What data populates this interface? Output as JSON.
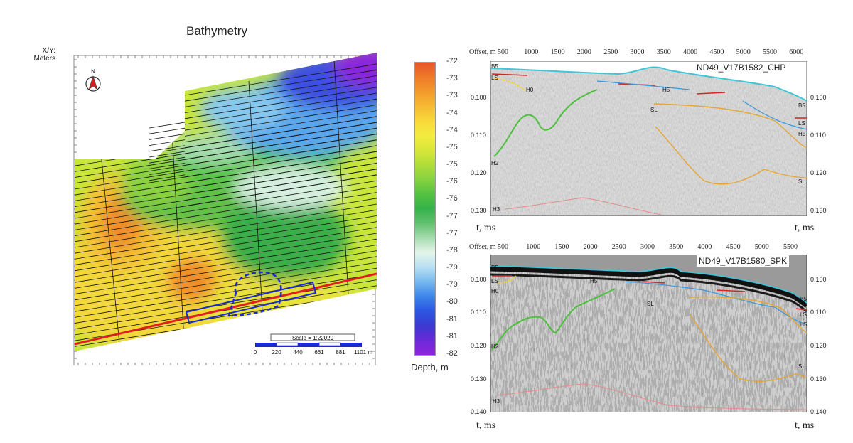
{
  "left_panel": {
    "title": "Bathymetry",
    "axis_label_line1": "X/Y:",
    "axis_label_line2": "Meters",
    "north_label": "N",
    "scale_title": "Scale = 1:22029",
    "scale_ticks": [
      "0",
      "220",
      "440",
      "661",
      "881",
      "1101 m"
    ]
  },
  "colorbar": {
    "labels": [
      "-72",
      "-73",
      "-73",
      "-74",
      "-74",
      "-75",
      "-75",
      "-76",
      "-76",
      "-77",
      "-77",
      "-78",
      "-79",
      "-79",
      "-80",
      "-81",
      "-81",
      "-82"
    ],
    "title": "Depth, m",
    "colors": [
      "#e8562a",
      "#ef7a28",
      "#f29a2c",
      "#f6bb33",
      "#f8d83a",
      "#f2ec3e",
      "#d8e63a",
      "#b0dd3a",
      "#86d240",
      "#54c242",
      "#36b24a",
      "#62c070",
      "#a6dcaf",
      "#e4f4ea",
      "#b8e0f2",
      "#76b8ee",
      "#3c86ea",
      "#2d56e2",
      "#3a3ad0",
      "#6a2ad8",
      "#8e24dc"
    ]
  },
  "seismic_top": {
    "title": "ND49_V17B1582_CHP",
    "offset_label": "Offset, m",
    "offset_ticks": [
      "500",
      "1000",
      "1500",
      "2000",
      "2500",
      "3000",
      "3500",
      "4000",
      "4500",
      "5000",
      "5500",
      "6000"
    ],
    "time_ticks": [
      "0.100",
      "0.110",
      "0.120",
      "0.130"
    ],
    "left_horizons": [
      "B5",
      "LS",
      "H0",
      "H2",
      "H3"
    ],
    "right_horizons": [
      "B5",
      "LS",
      "H5",
      "SL"
    ],
    "inner_labels": [
      "H5",
      "SL"
    ],
    "time_axis_label": "t, ms"
  },
  "seismic_bottom": {
    "title": "ND49_V17B1580_SPK",
    "offset_label": "Offset, m",
    "offset_ticks": [
      "500",
      "1000",
      "1500",
      "2000",
      "2500",
      "3000",
      "3500",
      "4000",
      "4500",
      "5000",
      "5500"
    ],
    "time_ticks": [
      "0.100",
      "0.110",
      "0.120",
      "0.130",
      "0.140"
    ],
    "left_horizons": [
      "B5",
      "LS",
      "H0",
      "H2",
      "H3"
    ],
    "right_horizons": [
      "B5",
      "LS",
      "H5",
      "SL"
    ],
    "inner_labels": [
      "H5",
      "SL"
    ],
    "time_axis_label": "t, ms"
  }
}
